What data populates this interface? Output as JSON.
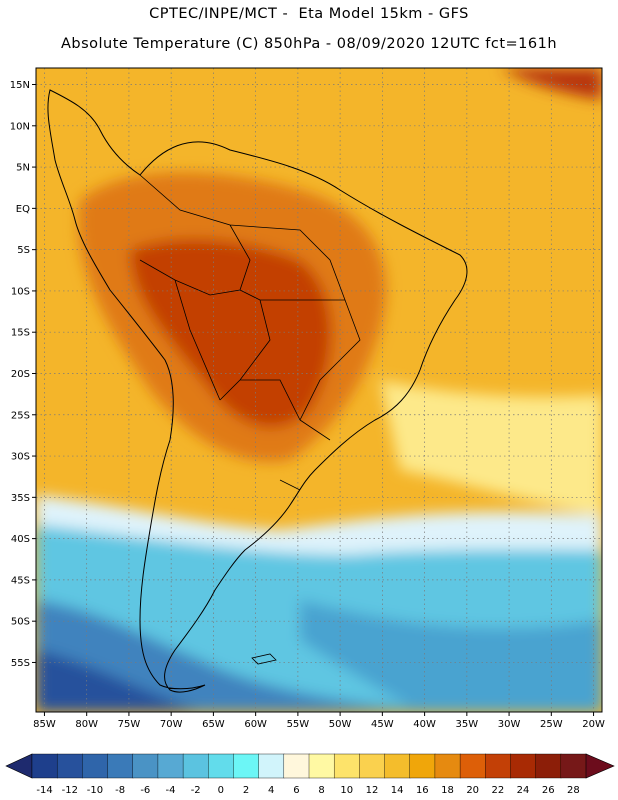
{
  "header": {
    "line1": "CPTEC/INPE/MCT -  Eta Model 15km - GFS",
    "line2": "Absolute Temperature (C) 850hPa - 08/09/2020 12UTC fct=161h"
  },
  "map": {
    "lon_range": [
      -86,
      -19
    ],
    "lat_range": [
      -61,
      17
    ],
    "lat_ticks": [
      {
        "value": 15,
        "label": "15N"
      },
      {
        "value": 10,
        "label": "10N"
      },
      {
        "value": 5,
        "label": "5N"
      },
      {
        "value": 0,
        "label": "EQ"
      },
      {
        "value": -5,
        "label": "5S"
      },
      {
        "value": -10,
        "label": "10S"
      },
      {
        "value": -15,
        "label": "15S"
      },
      {
        "value": -20,
        "label": "20S"
      },
      {
        "value": -25,
        "label": "25S"
      },
      {
        "value": -30,
        "label": "30S"
      },
      {
        "value": -35,
        "label": "35S"
      },
      {
        "value": -40,
        "label": "40S"
      },
      {
        "value": -45,
        "label": "45S"
      },
      {
        "value": -50,
        "label": "50S"
      },
      {
        "value": -55,
        "label": "55S"
      }
    ],
    "lon_ticks": [
      {
        "value": -85,
        "label": "85W"
      },
      {
        "value": -80,
        "label": "80W"
      },
      {
        "value": -75,
        "label": "75W"
      },
      {
        "value": -70,
        "label": "70W"
      },
      {
        "value": -65,
        "label": "65W"
      },
      {
        "value": -60,
        "label": "60W"
      },
      {
        "value": -55,
        "label": "55W"
      },
      {
        "value": -50,
        "label": "50W"
      },
      {
        "value": -45,
        "label": "45W"
      },
      {
        "value": -40,
        "label": "40W"
      },
      {
        "value": -35,
        "label": "35W"
      },
      {
        "value": -30,
        "label": "30W"
      },
      {
        "value": -25,
        "label": "25W"
      },
      {
        "value": -20,
        "label": "20W"
      }
    ],
    "gridlines": true
  },
  "colorbar": {
    "labels": [
      "-14",
      "-12",
      "-10",
      "-8",
      "-6",
      "-4",
      "-2",
      "0",
      "2",
      "4",
      "6",
      "8",
      "10",
      "12",
      "14",
      "16",
      "18",
      "20",
      "22",
      "24",
      "26",
      "28"
    ],
    "colors": [
      "#1e3f8c",
      "#27519c",
      "#2f65aa",
      "#3a7ab8",
      "#4a93c5",
      "#57a9d3",
      "#5bc3e0",
      "#62dceb",
      "#6cf6f6",
      "#d1f4fb",
      "#fff7dc",
      "#fff9a3",
      "#fde36a",
      "#fad14e",
      "#f4bd2c",
      "#f0a60a",
      "#e68a10",
      "#dd5f08",
      "#c34006",
      "#a82a04",
      "#8c1e08",
      "#761818"
    ],
    "left_arrow_color": "#1e2a6e",
    "right_arrow_color": "#6c0c1c"
  }
}
